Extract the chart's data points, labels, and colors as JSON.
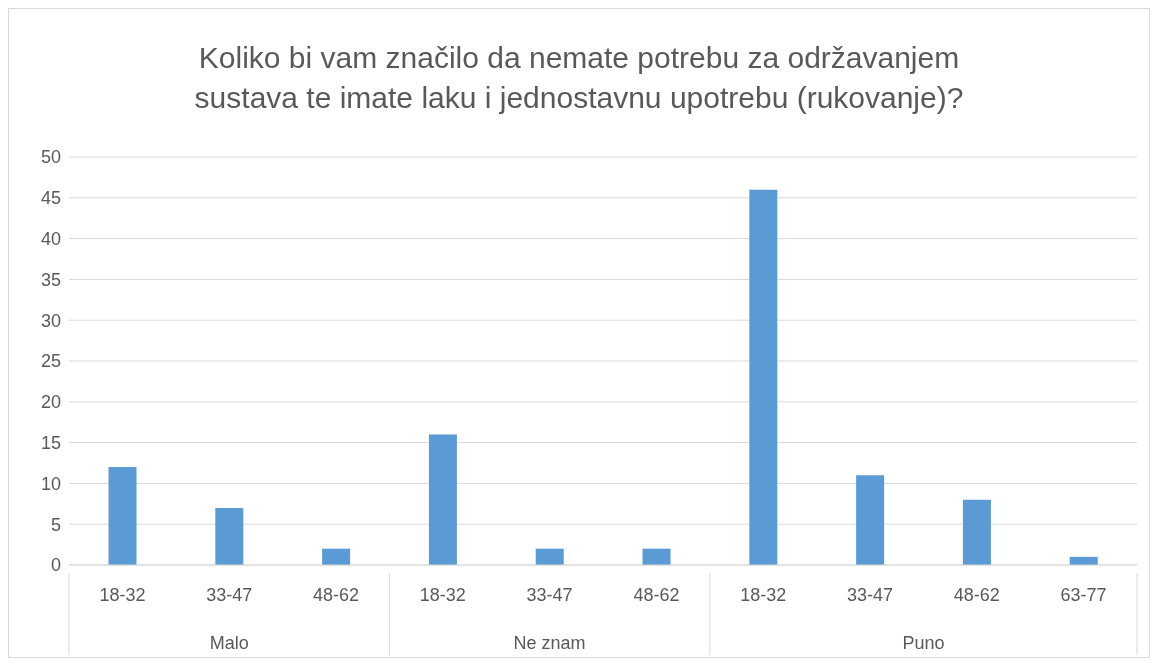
{
  "chart_data": {
    "type": "bar",
    "title": "Koliko bi vam značilo da nemate potrebu za održavanjem sustava te imate laku i jednostavnu upotrebu (rukovanje)?",
    "categories": [
      "18-32",
      "33-47",
      "48-62",
      "18-32",
      "33-47",
      "48-62",
      "18-32",
      "33-47",
      "48-62",
      "63-77"
    ],
    "values": [
      12,
      7,
      2,
      16,
      2,
      2,
      46,
      11,
      8,
      1
    ],
    "color": "#5b9bd5",
    "annotations": [
      "Malo",
      "Ne znam",
      "Puno"
    ],
    "ylim": [
      0,
      50
    ],
    "yticks": [
      0,
      5,
      10,
      15,
      20,
      25,
      30,
      35,
      40,
      45,
      50
    ],
    "grid": "y",
    "legend": false
  }
}
